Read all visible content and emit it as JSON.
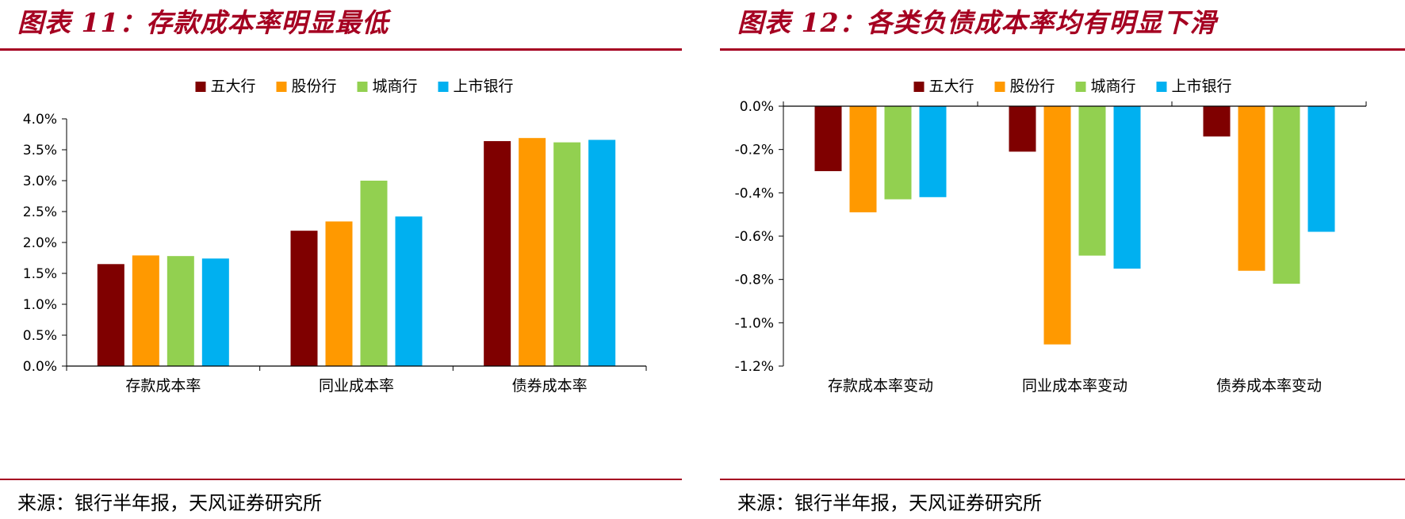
{
  "left": {
    "title": "图表 11：存款成本率明显最低",
    "source": "来源：银行半年报，天风证券研究所"
  },
  "right": {
    "title": "图表 12：各类负债成本率均有明显下滑",
    "source": "来源：银行半年报，天风证券研究所"
  },
  "chart_data": [
    {
      "type": "bar",
      "categories": [
        "存款成本率",
        "同业成本率",
        "债券成本率"
      ],
      "series": [
        {
          "name": "五大行",
          "color": "#7f0000",
          "values": [
            1.65,
            2.19,
            3.64
          ]
        },
        {
          "name": "股份行",
          "color": "#ff9900",
          "values": [
            1.79,
            2.34,
            3.69
          ]
        },
        {
          "name": "城商行",
          "color": "#92d050",
          "values": [
            1.78,
            3.0,
            3.62
          ]
        },
        {
          "name": "上市银行",
          "color": "#00b0f0",
          "values": [
            1.74,
            2.42,
            3.66
          ]
        }
      ],
      "ylim": [
        0,
        4.0
      ],
      "yticks": [
        0,
        0.5,
        1.0,
        1.5,
        2.0,
        2.5,
        3.0,
        3.5,
        4.0
      ],
      "ytick_labels": [
        "0.0%",
        "0.5%",
        "1.0%",
        "1.5%",
        "2.0%",
        "2.5%",
        "3.0%",
        "3.5%",
        "4.0%"
      ],
      "legend_position": "top-center",
      "grid": false
    },
    {
      "type": "bar",
      "categories": [
        "存款成本率变动",
        "同业成本率变动",
        "债券成本率变动"
      ],
      "series": [
        {
          "name": "五大行",
          "color": "#7f0000",
          "values": [
            -0.3,
            -0.21,
            -0.14
          ]
        },
        {
          "name": "股份行",
          "color": "#ff9900",
          "values": [
            -0.49,
            -1.1,
            -0.76
          ]
        },
        {
          "name": "城商行",
          "color": "#92d050",
          "values": [
            -0.43,
            -0.69,
            -0.82
          ]
        },
        {
          "name": "上市银行",
          "color": "#00b0f0",
          "values": [
            -0.42,
            -0.75,
            -0.58
          ]
        }
      ],
      "ylim": [
        -1.2,
        0
      ],
      "yticks": [
        0,
        -0.2,
        -0.4,
        -0.6,
        -0.8,
        -1.0,
        -1.2
      ],
      "ytick_labels": [
        "0.0%",
        "-0.2%",
        "-0.4%",
        "-0.6%",
        "-0.8%",
        "-1.0%",
        "-1.2%"
      ],
      "legend_position": "top-center",
      "grid": false
    }
  ]
}
